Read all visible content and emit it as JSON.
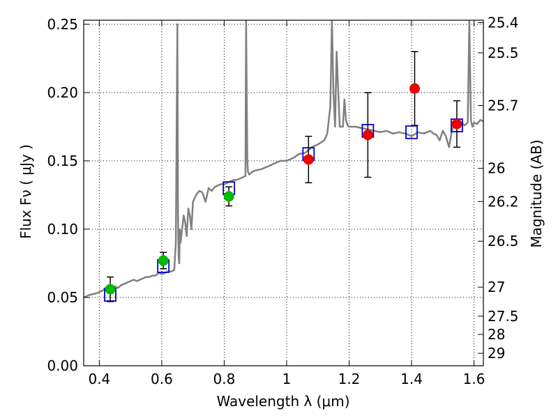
{
  "chart_data": {
    "type": "line",
    "xlabel": "Wavelength  λ (μm)",
    "ylabel": "Flux  Fν  ( μJy )",
    "y2label": "Magnitude (AB)",
    "xlim": [
      0.35,
      1.63
    ],
    "ylim": [
      0.0,
      0.253
    ],
    "grid": true,
    "x_ticks": [
      0.4,
      0.6,
      0.8,
      1.0,
      1.2,
      1.4,
      1.6
    ],
    "x_tick_labels": [
      "0.4",
      "0.6",
      "0.8",
      "1",
      "1.2",
      "1.4",
      "1.6"
    ],
    "y_ticks": [
      0.0,
      0.05,
      0.1,
      0.15,
      0.2,
      0.25
    ],
    "y_tick_labels": [
      "0.00",
      "0.05",
      "0.10",
      "0.15",
      "0.20",
      "0.25"
    ],
    "y2_tick_labels": [
      "25.4",
      "25.5",
      "25.7",
      "26",
      "26.2",
      "26.5",
      "27",
      "27.5",
      "28",
      "29"
    ],
    "colors": {
      "model_spectrum": "#808080",
      "model_photometry": "#0000cc",
      "hst_points": "#00bb00",
      "ir_points": "#ee0000",
      "errorbar": "#000000"
    },
    "series": [
      {
        "style": "line",
        "x": [
          0.35,
          0.37,
          0.39,
          0.41,
          0.42,
          0.43,
          0.44,
          0.45,
          0.46,
          0.47,
          0.48,
          0.49,
          0.5,
          0.51,
          0.52,
          0.53,
          0.54,
          0.55,
          0.56,
          0.57,
          0.58,
          0.59,
          0.6,
          0.61,
          0.62,
          0.63,
          0.64,
          0.645,
          0.65,
          0.652,
          0.654,
          0.656,
          0.658,
          0.66,
          0.67,
          0.675,
          0.68,
          0.685,
          0.69,
          0.695,
          0.7,
          0.71,
          0.72,
          0.73,
          0.74,
          0.75,
          0.76,
          0.77,
          0.78,
          0.79,
          0.8,
          0.81,
          0.82,
          0.83,
          0.84,
          0.85,
          0.86,
          0.868,
          0.87,
          0.872,
          0.874,
          0.876,
          0.88,
          0.89,
          0.9,
          0.92,
          0.94,
          0.96,
          0.98,
          1.0,
          1.02,
          1.04,
          1.06,
          1.08,
          1.1,
          1.12,
          1.13,
          1.14,
          1.145,
          1.15,
          1.155,
          1.16,
          1.17,
          1.18,
          1.185,
          1.19,
          1.195,
          1.2,
          1.22,
          1.24,
          1.26,
          1.28,
          1.3,
          1.32,
          1.34,
          1.36,
          1.38,
          1.4,
          1.42,
          1.44,
          1.46,
          1.47,
          1.48,
          1.49,
          1.5,
          1.51,
          1.52,
          1.53,
          1.54,
          1.55,
          1.56,
          1.57,
          1.58,
          1.585,
          1.59,
          1.595,
          1.6,
          1.61,
          1.62,
          1.63
        ],
        "y": [
          0.05,
          0.052,
          0.053,
          0.055,
          0.057,
          0.058,
          0.056,
          0.058,
          0.057,
          0.059,
          0.06,
          0.061,
          0.062,
          0.063,
          0.062,
          0.063,
          0.064,
          0.065,
          0.065,
          0.066,
          0.066,
          0.068,
          0.067,
          0.068,
          0.069,
          0.069,
          0.07,
          0.09,
          0.25,
          0.11,
          0.08,
          0.075,
          0.1,
          0.09,
          0.11,
          0.105,
          0.095,
          0.115,
          0.11,
          0.1,
          0.12,
          0.125,
          0.128,
          0.127,
          0.12,
          0.13,
          0.128,
          0.131,
          0.132,
          0.133,
          0.133,
          0.134,
          0.135,
          0.136,
          0.136,
          0.137,
          0.138,
          0.139,
          0.253,
          0.2,
          0.15,
          0.142,
          0.14,
          0.142,
          0.143,
          0.144,
          0.146,
          0.148,
          0.15,
          0.15,
          0.152,
          0.155,
          0.156,
          0.16,
          0.162,
          0.165,
          0.17,
          0.19,
          0.253,
          0.2,
          0.175,
          0.23,
          0.175,
          0.175,
          0.195,
          0.18,
          0.176,
          0.175,
          0.175,
          0.174,
          0.173,
          0.172,
          0.171,
          0.172,
          0.17,
          0.171,
          0.17,
          0.168,
          0.171,
          0.17,
          0.172,
          0.17,
          0.169,
          0.165,
          0.172,
          0.168,
          0.16,
          0.173,
          0.178,
          0.18,
          0.178,
          0.176,
          0.178,
          0.253,
          0.18,
          0.175,
          0.178,
          0.177,
          0.18,
          0.179
        ]
      },
      {
        "style": "open-square",
        "x": [
          0.435,
          0.605,
          0.815,
          1.07,
          1.26,
          1.4,
          1.545
        ],
        "y": [
          0.052,
          0.073,
          0.13,
          0.155,
          0.172,
          0.171,
          0.176
        ]
      },
      {
        "style": "filled-circle",
        "x": [
          0.435,
          0.605,
          0.815
        ],
        "y": [
          0.056,
          0.077,
          0.124
        ],
        "err": [
          0.009,
          0.006,
          0.007
        ]
      },
      {
        "style": "filled-circle",
        "x": [
          1.07,
          1.26,
          1.41,
          1.545
        ],
        "y": [
          0.151,
          0.169,
          0.203,
          0.177
        ],
        "err": [
          0.017,
          0.031,
          0.027,
          0.017
        ]
      }
    ]
  }
}
